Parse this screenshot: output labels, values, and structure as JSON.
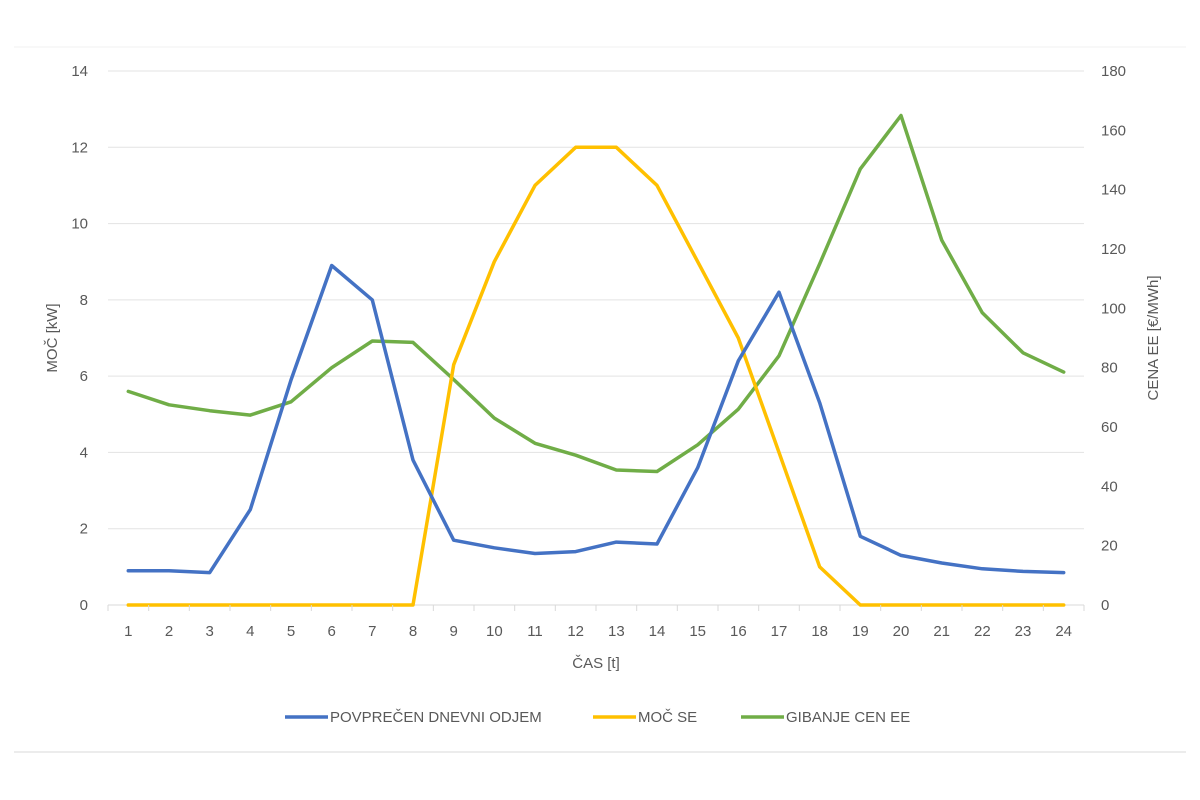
{
  "chart_data": {
    "type": "line",
    "x": [
      1,
      2,
      3,
      4,
      5,
      6,
      7,
      8,
      9,
      10,
      11,
      12,
      13,
      14,
      15,
      16,
      17,
      18,
      19,
      20,
      21,
      22,
      23,
      24
    ],
    "x_ticks": [
      "1",
      "2",
      "3",
      "4",
      "5",
      "6",
      "7",
      "8",
      "9",
      "10",
      "11",
      "12",
      "13",
      "14",
      "15",
      "16",
      "17",
      "18",
      "19",
      "20",
      "21",
      "22",
      "23",
      "24"
    ],
    "xlabel": "ČAS [t]",
    "ylabel_left": "MOČ [kW]",
    "ylabel_right": "CENA EE [€/MWh]",
    "ylim_left": [
      0,
      14
    ],
    "ylim_right": [
      0,
      180
    ],
    "yticks_left": [
      "0",
      "2",
      "4",
      "6",
      "8",
      "10",
      "12",
      "14"
    ],
    "yticks_right": [
      "0",
      "20",
      "40",
      "60",
      "80",
      "100",
      "120",
      "140",
      "160",
      "180"
    ],
    "grid": true,
    "legend_position": "bottom",
    "series": [
      {
        "name": "POVPREČEN DNEVNI ODJEM",
        "axis": "left",
        "color": "#4472C4",
        "values": [
          0.9,
          0.9,
          0.85,
          2.5,
          5.9,
          8.9,
          8.0,
          3.8,
          1.7,
          1.5,
          1.35,
          1.4,
          1.65,
          1.6,
          3.6,
          6.4,
          8.2,
          5.3,
          1.8,
          1.3,
          1.1,
          0.95,
          0.88,
          0.85
        ]
      },
      {
        "name": "MOČ SE",
        "axis": "left",
        "color": "#FFC000",
        "values": [
          0,
          0,
          0,
          0,
          0,
          0,
          0,
          0,
          6.3,
          9.0,
          11.0,
          12.0,
          12.0,
          11.0,
          9.0,
          7.0,
          4.0,
          1.0,
          0,
          0,
          0,
          0,
          0,
          0
        ]
      },
      {
        "name": "GIBANJE CEN EE",
        "axis": "right",
        "color": "#70AD47",
        "values": [
          72,
          67.5,
          65.5,
          64,
          68.5,
          80,
          89,
          88.5,
          76,
          63,
          54.5,
          50.5,
          45.5,
          45,
          54,
          66,
          84,
          115,
          147,
          165,
          123,
          98.5,
          85,
          78.5
        ]
      }
    ]
  }
}
